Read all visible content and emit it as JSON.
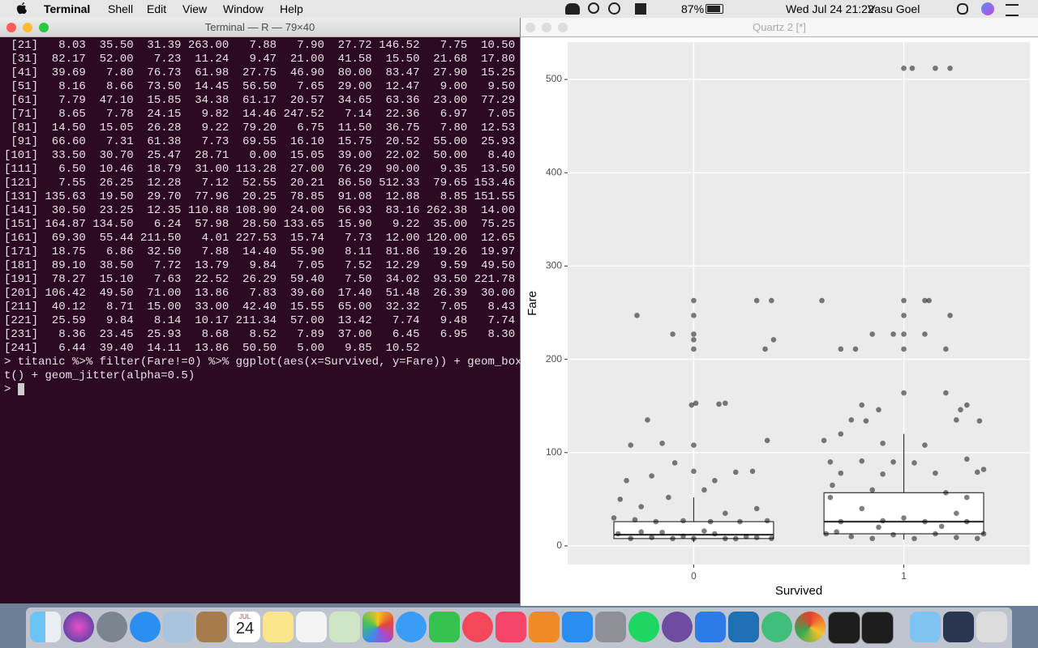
{
  "menubar": {
    "app": "Terminal",
    "menus": [
      "Shell",
      "Edit",
      "View",
      "Window",
      "Help"
    ],
    "battery": "87%",
    "clock": "Wed Jul 24  21:22",
    "user": "Vasu Goel"
  },
  "terminal": {
    "title": "Terminal — R — 79×40",
    "lines": [
      " [21]   8.03  35.50  31.39 263.00   7.88   7.90  27.72 146.52   7.75  10.50",
      " [31]  82.17  52.00   7.23  11.24   9.47  21.00  41.58  15.50  21.68  17.80",
      " [41]  39.69   7.80  76.73  61.98  27.75  46.90  80.00  83.47  27.90  15.25",
      " [51]   8.16   8.66  73.50  14.45  56.50   7.65  29.00  12.47   9.00   9.50",
      " [61]   7.79  47.10  15.85  34.38  61.17  20.57  34.65  63.36  23.00  77.29",
      " [71]   8.65   7.78  24.15   9.82  14.46 247.52   7.14  22.36   6.97   7.05",
      " [81]  14.50  15.05  26.28   9.22  79.20   6.75  11.50  36.75   7.80  12.53",
      " [91]  66.60   7.31  61.38   7.73  69.55  16.10  15.75  20.52  55.00  25.93",
      "[101]  33.50  30.70  25.47  28.71   0.00  15.05  39.00  22.02  50.00   8.40",
      "[111]   6.50  10.46  18.79  31.00 113.28  27.00  76.29  90.00   9.35  13.50",
      "[121]   7.55  26.25  12.28   7.12  52.55  20.21  86.50 512.33  79.65 153.46",
      "[131] 135.63  19.50  29.70  77.96  20.25  78.85  91.08  12.88   8.85 151.55",
      "[141]  30.50  23.25  12.35 110.88 108.90  24.00  56.93  83.16 262.38  14.00",
      "[151] 164.87 134.50   6.24  57.98  28.50 133.65  15.90   9.22  35.00  75.25",
      "[161]  69.30  55.44 211.50   4.01 227.53  15.74   7.73  12.00 120.00  12.65",
      "[171]  18.75   6.86  32.50   7.88  14.40  55.90   8.11  81.86  19.26  19.97",
      "[181]  89.10  38.50   7.72  13.79   9.84   7.05   7.52  12.29   9.59  49.50",
      "[191]  78.27  15.10   7.63  22.52  26.29  59.40   7.50  34.02  93.50 221.78",
      "[201] 106.42  49.50  71.00  13.86   7.83  39.60  17.40  51.48  26.39  30.00",
      "[211]  40.12   8.71  15.00  33.00  42.40  15.55  65.00  32.32   7.05   8.43",
      "[221]  25.59   9.84   8.14  10.17 211.34  57.00  13.42   7.74   9.48   7.74",
      "[231]   8.36  23.45  25.93   8.68   8.52   7.89  37.00   6.45   6.95   8.30",
      "[241]   6.44  39.40  14.11  13.86  50.50   5.00   9.85  10.52",
      "> titanic %>% filter(Fare!=0) %>% ggplot(aes(x=Survived, y=Fare)) + geom_boxplo",
      "t() + geom_jitter(alpha=0.5)",
      "> "
    ]
  },
  "quartz_window": {
    "title": "Quartz 2 [*]"
  },
  "dock": {
    "calendar_month": "JUL",
    "calendar_day": "24"
  },
  "chart_data": {
    "type": "boxplot",
    "x_label": "Survived",
    "y_label": "Fare",
    "xlim": [
      -0.6,
      1.6
    ],
    "xticks": [
      0,
      1
    ],
    "ylim": [
      -20,
      540
    ],
    "yticks": [
      0,
      100,
      200,
      300,
      400,
      500
    ],
    "grid": true,
    "boxes": [
      {
        "x": 0,
        "low": 4,
        "q1": 7.9,
        "median": 12,
        "q3": 26,
        "high": 52
      },
      {
        "x": 1,
        "low": 6.75,
        "q1": 13,
        "median": 26,
        "q3": 57,
        "high": 120
      }
    ],
    "points": {
      "color": "#000000",
      "alpha": 0.5,
      "x": [
        -0.27,
        -0.1,
        0,
        0,
        0,
        0,
        0,
        0.3,
        0.37,
        0.34,
        0.38,
        -0.01,
        0.01,
        0.12,
        0.15,
        -0.22,
        -0.3,
        -0.15,
        0,
        0.35,
        -0.09,
        0,
        0.2,
        0.28,
        -0.32,
        -0.2,
        0.1,
        0.05,
        -0.35,
        -0.25,
        -0.12,
        0.15,
        0.3,
        -0.38,
        -0.28,
        -0.18,
        -0.05,
        0.08,
        0.22,
        0.35,
        -0.36,
        -0.3,
        -0.2,
        -0.1,
        0,
        0.1,
        0.2,
        0.3,
        0.37,
        -0.25,
        0.05,
        0.25,
        -0.05,
        0.15,
        -0.15,
        0.61,
        0.7,
        0.77,
        0.85,
        0.95,
        1,
        1,
        1,
        1,
        1.1,
        1.12,
        1.22,
        1.1,
        1.2,
        1,
        1.04,
        1.15,
        1.22,
        1,
        1.2,
        1.3,
        0.8,
        0.88,
        1.27,
        0.75,
        0.82,
        1.25,
        1.36,
        0.62,
        0.7,
        0.9,
        1.1,
        0.65,
        0.8,
        0.95,
        1.05,
        1.3,
        1.38,
        0.7,
        0.9,
        1.15,
        1.35,
        0.66,
        0.85,
        1.2,
        1.3,
        0.65,
        0.8,
        1,
        1.25,
        0.7,
        0.9,
        1.1,
        1.3,
        1.38,
        0.63,
        0.75,
        0.85,
        0.95,
        1.05,
        1.15,
        1.25,
        1.35,
        0.68,
        0.88,
        1.18
      ],
      "y": [
        247,
        227,
        263,
        247,
        227,
        221,
        211,
        263,
        263,
        211,
        221,
        151,
        153,
        152,
        153,
        135,
        108,
        110,
        108,
        113,
        89,
        80,
        79,
        80,
        70,
        75,
        70,
        60,
        50,
        42,
        52,
        35,
        40,
        30,
        28,
        26,
        27,
        26,
        26,
        27,
        13,
        8,
        9,
        7.9,
        8,
        13,
        7.8,
        9,
        8,
        15,
        16,
        10,
        10.5,
        7.9,
        14.5,
        263,
        211,
        211,
        227,
        227,
        263,
        247,
        227,
        211,
        263,
        263,
        247,
        227,
        211,
        512,
        512,
        512,
        512,
        164,
        164,
        151,
        151,
        146,
        146,
        135,
        134,
        135,
        134,
        113,
        120,
        110,
        108,
        90,
        91,
        90,
        89,
        93,
        82,
        78,
        77,
        78,
        79,
        65,
        60,
        57,
        52,
        52,
        40,
        30,
        35,
        26,
        27,
        26,
        26,
        13,
        13,
        10,
        8,
        12,
        7.9,
        13,
        9,
        8,
        15,
        20,
        21
      ]
    }
  }
}
